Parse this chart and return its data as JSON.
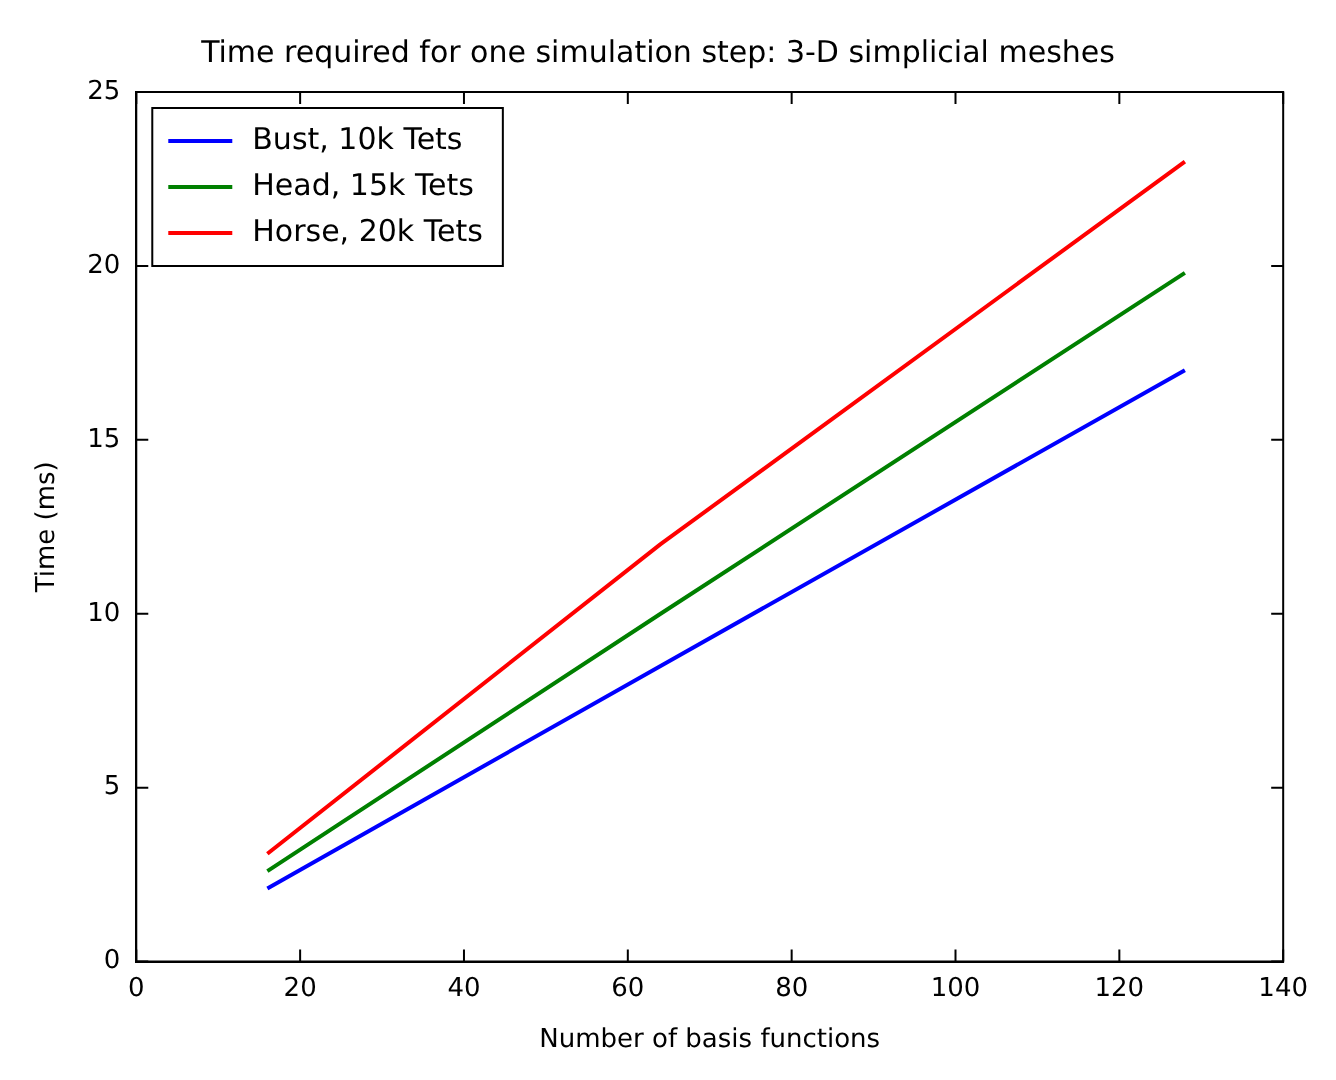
{
  "chart_data": {
    "type": "line",
    "title": "Time required for one simulation step: 3-D simplicial meshes",
    "xlabel": "Number of basis functions",
    "ylabel": "Time (ms)",
    "x": [
      16,
      64,
      128
    ],
    "series": [
      {
        "name": "Bust, 10k Tets",
        "color": "#0000ff",
        "values": [
          2.1,
          8.5,
          17.0
        ]
      },
      {
        "name": "Head, 15k Tets",
        "color": "#008000",
        "values": [
          2.6,
          10.0,
          19.8
        ]
      },
      {
        "name": "Horse, 20k Tets",
        "color": "#ff0000",
        "values": [
          3.1,
          12.0,
          23.0
        ]
      }
    ],
    "xlim": [
      0,
      140
    ],
    "xticks": [
      0,
      20,
      40,
      60,
      80,
      100,
      120,
      140
    ],
    "ylim": [
      0,
      25
    ],
    "yticks": [
      0,
      5,
      10,
      15,
      20,
      25
    ],
    "grid": false,
    "legend": "top left",
    "marker": "none",
    "line_style": "solid"
  }
}
